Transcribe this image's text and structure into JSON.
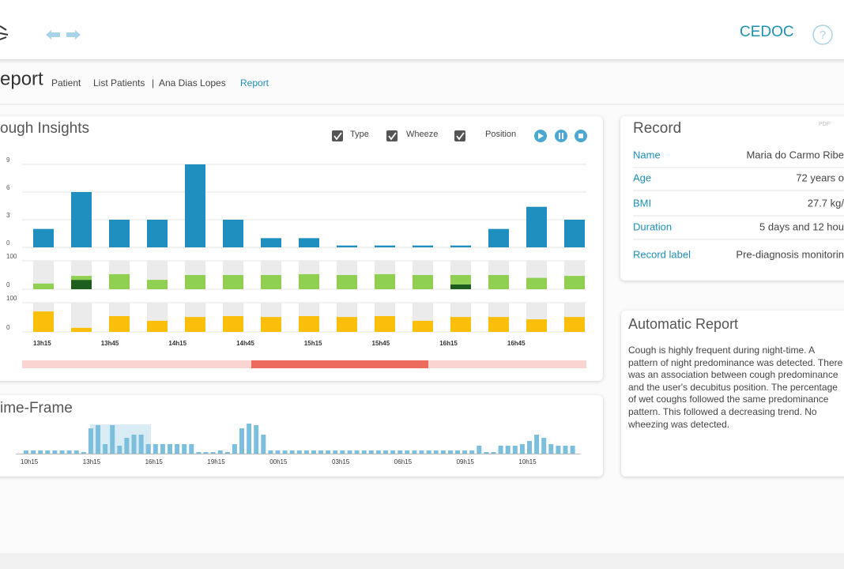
{
  "header": {
    "brand": "CEDOC",
    "help": "?"
  },
  "breadcrumb": {
    "page_title": "eport",
    "items": [
      "Patient",
      "List Patients",
      "|",
      "Ana Dias Lopes",
      "Report"
    ]
  },
  "cough_insights": {
    "title": "ough Insights",
    "toggles": [
      "Type",
      "Wheeze",
      "Position"
    ]
  },
  "time_frame": {
    "title": "ime-Frame"
  },
  "record": {
    "title": "Record",
    "icon": "PDF",
    "rows": [
      [
        "Name",
        "Maria do Carmo Ribe"
      ],
      [
        "Age",
        "72 years o"
      ],
      [
        "BMI",
        "27.7 kg/"
      ],
      [
        "Duration",
        "5 days and 12 hou"
      ],
      [
        "Record label",
        "Pre-diagnosis monitorin"
      ]
    ]
  },
  "automatic_report": {
    "title": "Automatic Report",
    "text": "Cough is highly frequent during night-time. A pattern of night predominance was detected. There was an association between cough predominance and the user's decubitus position. The percentage of wet coughs followed the same predominance pattern. This followed a decreasing trend. No wheezing was detected."
  },
  "chart_data": [
    {
      "type": "bar",
      "color": "#1f8fc0",
      "grid": true,
      "ylim": [
        0,
        9
      ],
      "yticks": [
        0,
        3,
        6,
        9
      ],
      "values": [
        2,
        6,
        3,
        3,
        9,
        3,
        1,
        1,
        0.2,
        0.2,
        0.2,
        0.2,
        2,
        4.4,
        3
      ]
    },
    {
      "type": "stacked-bar",
      "grid": true,
      "ylim": [
        0,
        100
      ],
      "yticks": [
        0,
        100
      ],
      "series": [
        {
          "color": "#1d5e1f",
          "values": [
            0,
            33,
            0,
            0,
            0,
            0,
            0,
            0,
            0,
            0,
            0,
            17,
            0,
            0,
            0
          ]
        },
        {
          "color": "#8fd052",
          "values": [
            20,
            14,
            53,
            33,
            50,
            50,
            50,
            53,
            50,
            53,
            50,
            33,
            50,
            40,
            47
          ]
        }
      ]
    },
    {
      "type": "bar",
      "color": "#fbbf0b",
      "grid": true,
      "ylim": [
        0,
        100
      ],
      "yticks": [
        0,
        100
      ],
      "values": [
        70,
        14,
        54,
        38,
        51,
        54,
        51,
        54,
        51,
        54,
        38,
        51,
        51,
        43,
        51
      ],
      "xlabels": [
        "13h15",
        "13h45",
        "14h15",
        "14h45",
        "15h15",
        "15h45",
        "16h15",
        "16h45"
      ]
    },
    {
      "type": "bar",
      "color": "#7bbfdc",
      "ylim": [
        0,
        10
      ],
      "values": [
        1,
        1,
        1,
        1,
        1,
        1,
        1,
        1,
        0.5,
        8,
        9,
        3,
        9,
        2.5,
        5,
        6,
        6,
        3,
        3,
        3,
        3,
        3,
        3,
        3,
        0.5,
        0.5,
        0.5,
        1,
        0.5,
        3,
        8,
        9.5,
        9,
        6,
        1,
        1,
        1,
        1,
        1,
        1,
        1,
        1,
        1,
        1,
        1,
        1,
        1,
        1,
        1,
        1,
        1,
        1,
        1,
        1,
        1,
        1,
        1,
        1,
        1,
        1,
        1,
        1,
        1,
        2.5,
        0.5,
        0.5,
        2.5,
        2.5,
        2.5,
        3,
        4,
        6,
        5,
        3,
        2.5,
        2.5,
        2.5
      ],
      "xlabels": [
        "10h15",
        "13h15",
        "16h15",
        "19h15",
        "00h15",
        "03h15",
        "06h15",
        "09h15",
        "10h15"
      ]
    }
  ]
}
